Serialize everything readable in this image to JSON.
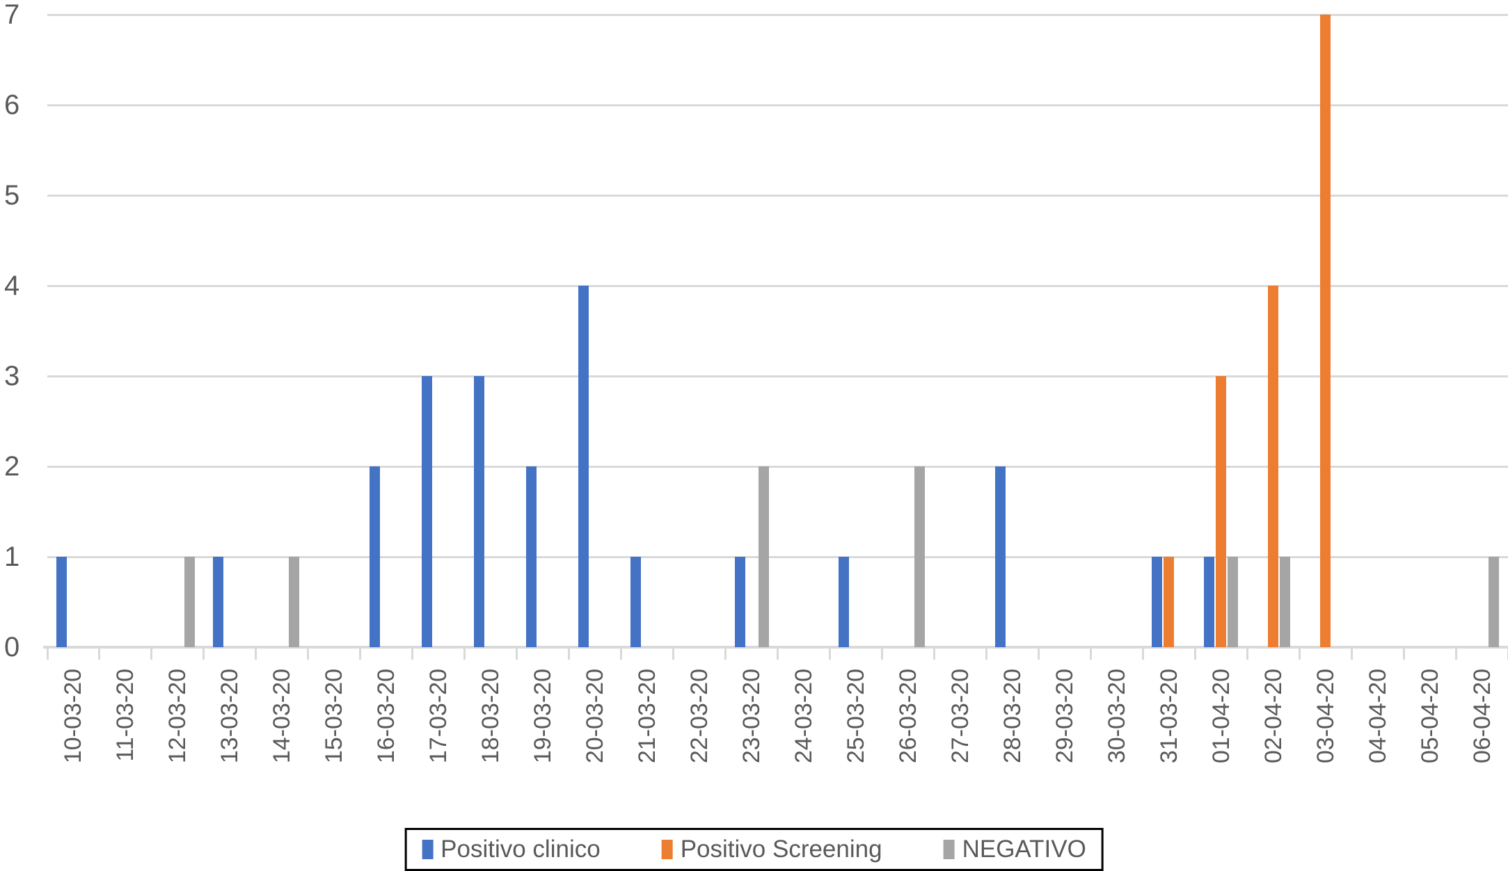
{
  "chart_data": {
    "type": "bar",
    "title": "",
    "xlabel": "",
    "ylabel": "",
    "categories": [
      "10-03-20",
      "11-03-20",
      "12-03-20",
      "13-03-20",
      "14-03-20",
      "15-03-20",
      "16-03-20",
      "17-03-20",
      "18-03-20",
      "19-03-20",
      "20-03-20",
      "21-03-20",
      "22-03-20",
      "23-03-20",
      "24-03-20",
      "25-03-20",
      "26-03-20",
      "27-03-20",
      "28-03-20",
      "29-03-20",
      "30-03-20",
      "31-03-20",
      "01-04-20",
      "02-04-20",
      "03-04-20",
      "04-04-20",
      "05-04-20",
      "06-04-20"
    ],
    "series": [
      {
        "name": "Positivo clinico",
        "color": "#4472C4",
        "values": [
          1,
          0,
          0,
          1,
          0,
          0,
          2,
          3,
          3,
          2,
          4,
          1,
          0,
          1,
          0,
          1,
          0,
          0,
          2,
          0,
          0,
          1,
          1,
          0,
          0,
          0,
          0,
          0
        ]
      },
      {
        "name": "Positivo Screening",
        "color": "#ED7D31",
        "values": [
          0,
          0,
          0,
          0,
          0,
          0,
          0,
          0,
          0,
          0,
          0,
          0,
          0,
          0,
          0,
          0,
          0,
          0,
          0,
          0,
          0,
          1,
          3,
          4,
          7,
          0,
          0,
          0
        ]
      },
      {
        "name": "NEGATIVO",
        "color": "#A5A5A5",
        "values": [
          0,
          0,
          1,
          0,
          1,
          0,
          0,
          0,
          0,
          0,
          0,
          0,
          0,
          2,
          0,
          0,
          2,
          0,
          0,
          0,
          0,
          0,
          1,
          1,
          0,
          0,
          0,
          1
        ]
      }
    ],
    "ylim": [
      0,
      7
    ],
    "yticks": [
      0,
      1,
      2,
      3,
      4,
      5,
      6,
      7
    ],
    "grid": true,
    "legend_position": "bottom-center"
  },
  "colors": {
    "gridline": "#D9D9D9",
    "axis_line": "#D9D9D9",
    "tick": "#D9D9D9",
    "label_text": "#595959",
    "legend_border": "#000000"
  }
}
